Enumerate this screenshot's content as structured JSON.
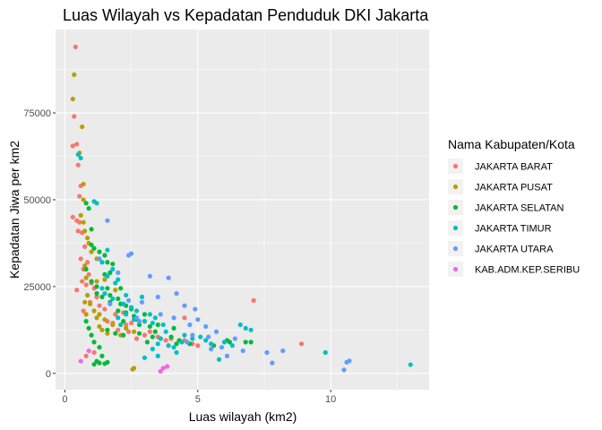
{
  "chart_data": {
    "type": "scatter",
    "title": "Luas Wilayah vs Kepadatan Penduduk DKI Jakarta",
    "xlabel": "Luas wilayah (km2)",
    "ylabel": "Kepadatan Jiwa per km2",
    "xlim": [
      -0.35,
      13.7
    ],
    "ylim": [
      -4700,
      99000
    ],
    "x_ticks": [
      0,
      5,
      10
    ],
    "x_tick_labels": [
      "0",
      "5",
      "10"
    ],
    "y_ticks": [
      0,
      25000,
      50000,
      75000
    ],
    "y_tick_labels": [
      "0",
      "25000",
      "50000",
      "75000"
    ],
    "grid": true,
    "legend": {
      "title": "Nama Kabupaten/Kota",
      "position": "right"
    },
    "series": [
      {
        "name": "JAKARTA BARAT",
        "color": "#F8766D",
        "points": [
          [
            0.4,
            94000
          ],
          [
            0.35,
            74000
          ],
          [
            0.3,
            65500
          ],
          [
            0.45,
            66000
          ],
          [
            0.5,
            60000
          ],
          [
            0.6,
            54000
          ],
          [
            0.55,
            51000
          ],
          [
            0.3,
            45000
          ],
          [
            0.45,
            44000
          ],
          [
            0.55,
            43500
          ],
          [
            0.5,
            41000
          ],
          [
            0.65,
            40500
          ],
          [
            0.75,
            36500
          ],
          [
            0.6,
            33000
          ],
          [
            0.85,
            32000
          ],
          [
            0.7,
            30000
          ],
          [
            0.9,
            28500
          ],
          [
            0.65,
            26500
          ],
          [
            0.8,
            25500
          ],
          [
            0.45,
            24000
          ],
          [
            1.0,
            26000
          ],
          [
            1.1,
            24500
          ],
          [
            0.85,
            22500
          ],
          [
            1.2,
            22000
          ],
          [
            0.95,
            20500
          ],
          [
            1.3,
            19500
          ],
          [
            0.7,
            18000
          ],
          [
            1.5,
            18500
          ],
          [
            1.9,
            17000
          ],
          [
            1.6,
            15000
          ],
          [
            2.2,
            17500
          ],
          [
            1.8,
            14500
          ],
          [
            2.3,
            14000
          ],
          [
            2.5,
            14500
          ],
          [
            2.0,
            12500
          ],
          [
            2.4,
            12000
          ],
          [
            3.2,
            12000
          ],
          [
            3.0,
            11000
          ],
          [
            3.5,
            10500
          ],
          [
            2.7,
            10000
          ],
          [
            3.8,
            9500
          ],
          [
            4.0,
            10000
          ],
          [
            4.5,
            9500
          ],
          [
            4.6,
            9000
          ],
          [
            4.8,
            8500
          ],
          [
            5.0,
            8000
          ],
          [
            1.1,
            6000
          ],
          [
            0.8,
            5000
          ],
          [
            7.1,
            21000
          ],
          [
            4.5,
            16000
          ],
          [
            8.9,
            8500
          ]
        ]
      },
      {
        "name": "JAKARTA PUSAT",
        "color": "#B79F00",
        "points": [
          [
            0.35,
            86000
          ],
          [
            0.3,
            79000
          ],
          [
            0.65,
            71000
          ],
          [
            0.55,
            63500
          ],
          [
            0.7,
            54500
          ],
          [
            0.7,
            50000
          ],
          [
            0.6,
            45500
          ],
          [
            0.7,
            43500
          ],
          [
            0.75,
            41000
          ],
          [
            0.85,
            39000
          ],
          [
            0.9,
            37500
          ],
          [
            1.0,
            35000
          ],
          [
            1.2,
            33000
          ],
          [
            0.75,
            31000
          ],
          [
            0.8,
            27500
          ],
          [
            1.2,
            26500
          ],
          [
            0.85,
            22500
          ],
          [
            0.75,
            20500
          ],
          [
            0.95,
            20000
          ],
          [
            1.1,
            18000
          ],
          [
            1.3,
            17000
          ],
          [
            0.8,
            17000
          ],
          [
            1.2,
            16000
          ],
          [
            1.5,
            15500
          ],
          [
            1.8,
            14000
          ],
          [
            2.3,
            13000
          ],
          [
            2.6,
            12000
          ],
          [
            1.6,
            11500
          ],
          [
            2.1,
            11000
          ],
          [
            1.4,
            12500
          ],
          [
            1.3,
            13500
          ],
          [
            2.6,
            1500
          ],
          [
            2.55,
            1200
          ],
          [
            1.9,
            24000
          ],
          [
            1.5,
            27000
          ]
        ]
      },
      {
        "name": "JAKARTA SELATAN",
        "color": "#00BA38",
        "points": [
          [
            0.8,
            49000
          ],
          [
            0.9,
            47500
          ],
          [
            1.0,
            41500
          ],
          [
            1.0,
            37000
          ],
          [
            1.1,
            36000
          ],
          [
            1.3,
            35000
          ],
          [
            1.5,
            34000
          ],
          [
            1.6,
            32000
          ],
          [
            1.8,
            31500
          ],
          [
            1.7,
            29000
          ],
          [
            1.5,
            28500
          ],
          [
            0.8,
            30000
          ],
          [
            1.0,
            26500
          ],
          [
            1.2,
            25000
          ],
          [
            1.6,
            24500
          ],
          [
            1.2,
            23000
          ],
          [
            1.4,
            22000
          ],
          [
            1.7,
            22500
          ],
          [
            2.0,
            21500
          ],
          [
            1.7,
            20500
          ],
          [
            2.1,
            20000
          ],
          [
            2.3,
            19500
          ],
          [
            2.5,
            18500
          ],
          [
            2.0,
            18000
          ],
          [
            2.3,
            17500
          ],
          [
            2.6,
            16500
          ],
          [
            2.7,
            15500
          ],
          [
            2.2,
            15000
          ],
          [
            3.0,
            15000
          ],
          [
            2.8,
            14000
          ],
          [
            3.2,
            13500
          ],
          [
            3.5,
            14000
          ],
          [
            1.6,
            12500
          ],
          [
            1.9,
            11500
          ],
          [
            2.2,
            11000
          ],
          [
            2.8,
            11500
          ],
          [
            3.3,
            10500
          ],
          [
            3.6,
            10000
          ],
          [
            3.1,
            9000
          ],
          [
            4.0,
            10500
          ],
          [
            4.3,
            9500
          ],
          [
            4.2,
            8500
          ],
          [
            4.7,
            8500
          ],
          [
            5.6,
            8000
          ],
          [
            6.1,
            9500
          ],
          [
            6.2,
            9000
          ],
          [
            6.8,
            9000
          ],
          [
            7.0,
            9000
          ],
          [
            0.8,
            15000
          ],
          [
            0.9,
            13000
          ],
          [
            1.0,
            11000
          ],
          [
            1.1,
            9000
          ],
          [
            1.3,
            7500
          ],
          [
            1.4,
            5000
          ],
          [
            1.2,
            3500
          ],
          [
            1.3,
            3000
          ],
          [
            1.5,
            2800
          ],
          [
            1.6,
            3200
          ],
          [
            1.1,
            2600
          ],
          [
            2.1,
            24500
          ],
          [
            3.0,
            17000
          ],
          [
            3.4,
            12000
          ],
          [
            4.1,
            13000
          ]
        ]
      },
      {
        "name": "JAKARTA TIMUR",
        "color": "#00BFC4",
        "points": [
          [
            0.5,
            63000
          ],
          [
            0.6,
            62000
          ],
          [
            1.1,
            49500
          ],
          [
            1.2,
            49000
          ],
          [
            1.6,
            35500
          ],
          [
            1.4,
            32000
          ],
          [
            1.8,
            30000
          ],
          [
            1.6,
            28000
          ],
          [
            2.0,
            27000
          ],
          [
            1.9,
            26000
          ],
          [
            1.4,
            24500
          ],
          [
            1.5,
            23000
          ],
          [
            2.3,
            22500
          ],
          [
            1.8,
            21500
          ],
          [
            2.2,
            20000
          ],
          [
            2.5,
            19000
          ],
          [
            2.7,
            18000
          ],
          [
            2.3,
            17000
          ],
          [
            2.0,
            16000
          ],
          [
            2.6,
            15500
          ],
          [
            3.2,
            17000
          ],
          [
            3.4,
            16000
          ],
          [
            3.0,
            15000
          ],
          [
            3.3,
            14500
          ],
          [
            3.7,
            14000
          ],
          [
            3.8,
            12000
          ],
          [
            3.6,
            10000
          ],
          [
            4.4,
            9000
          ],
          [
            3.5,
            8500
          ],
          [
            3.9,
            8000
          ],
          [
            4.1,
            7500
          ],
          [
            3.3,
            7000
          ],
          [
            4.5,
            11000
          ],
          [
            4.8,
            10000
          ],
          [
            5.1,
            10500
          ],
          [
            5.3,
            9500
          ],
          [
            5.5,
            8500
          ],
          [
            6.0,
            9000
          ],
          [
            6.3,
            8000
          ],
          [
            6.6,
            14000
          ],
          [
            6.8,
            13000
          ],
          [
            7.0,
            12500
          ],
          [
            3.0,
            4500
          ],
          [
            3.5,
            5000
          ],
          [
            4.2,
            6000
          ],
          [
            5.8,
            4000
          ],
          [
            9.8,
            6000
          ],
          [
            13.0,
            2500
          ],
          [
            2.9,
            22000
          ],
          [
            2.1,
            14000
          ]
        ]
      },
      {
        "name": "JAKARTA UTARA",
        "color": "#619CFF",
        "points": [
          [
            1.6,
            44000
          ],
          [
            2.4,
            34000
          ],
          [
            2.5,
            34500
          ],
          [
            1.3,
            33000
          ],
          [
            2.0,
            29000
          ],
          [
            3.2,
            28000
          ],
          [
            3.9,
            27500
          ],
          [
            4.2,
            23000
          ],
          [
            3.5,
            22000
          ],
          [
            2.4,
            21000
          ],
          [
            2.9,
            20500
          ],
          [
            4.5,
            19500
          ],
          [
            4.9,
            18500
          ],
          [
            3.6,
            17000
          ],
          [
            4.1,
            16000
          ],
          [
            2.8,
            15000
          ],
          [
            4.7,
            14000
          ],
          [
            5.0,
            15500
          ],
          [
            5.3,
            13500
          ],
          [
            5.7,
            12000
          ],
          [
            4.8,
            11000
          ],
          [
            5.4,
            10500
          ],
          [
            6.4,
            10000
          ],
          [
            4.6,
            9000
          ],
          [
            5.5,
            7000
          ],
          [
            5.9,
            7500
          ],
          [
            6.1,
            5000
          ],
          [
            6.7,
            6500
          ],
          [
            7.6,
            6000
          ],
          [
            7.8,
            3000
          ],
          [
            8.2,
            6500
          ],
          [
            10.5,
            1000
          ],
          [
            10.6,
            3200
          ],
          [
            10.7,
            3600
          ],
          [
            1.7,
            20000
          ],
          [
            2.7,
            16000
          ]
        ]
      },
      {
        "name": "KAB.ADM.KEP.SERIBU",
        "color": "#F564E3",
        "points": [
          [
            0.6,
            3500
          ],
          [
            0.9,
            6500
          ],
          [
            3.6,
            600
          ],
          [
            3.7,
            1500
          ],
          [
            3.85,
            2000
          ]
        ]
      }
    ]
  }
}
